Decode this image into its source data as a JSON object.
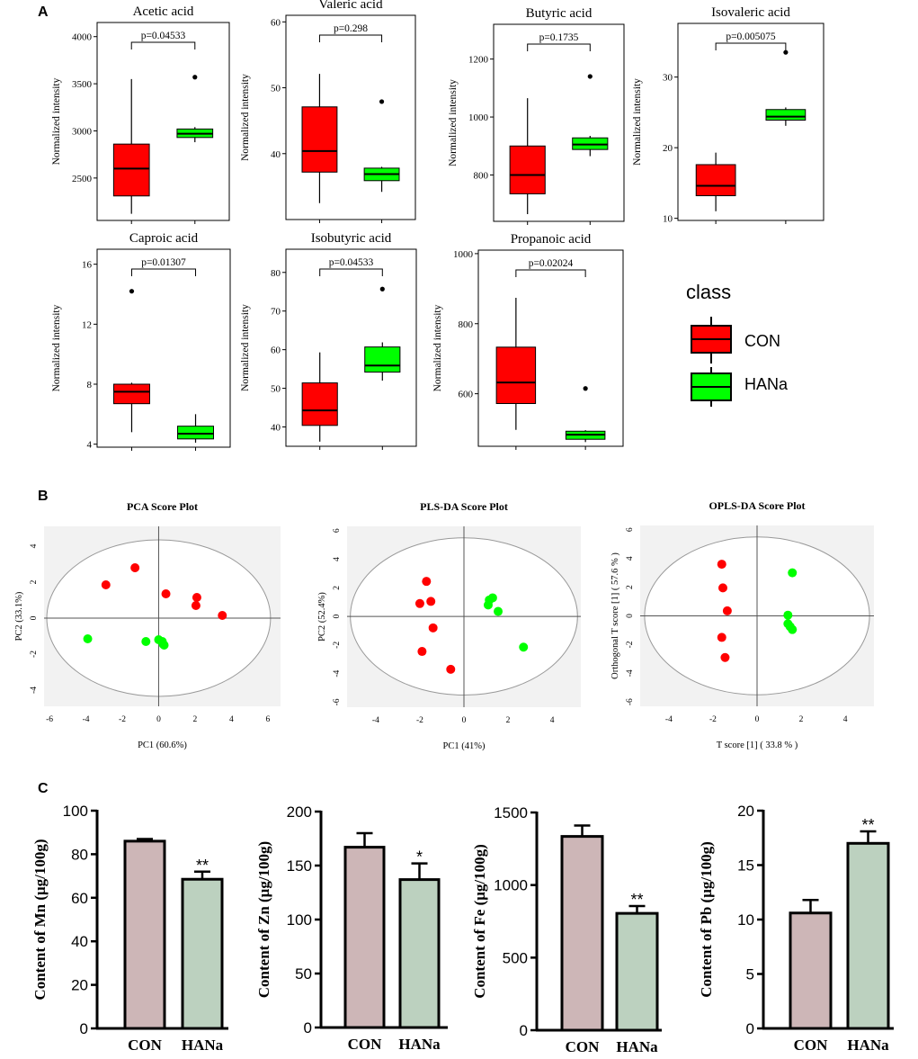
{
  "panel_labels": {
    "a": "A",
    "b": "B",
    "c": "C"
  },
  "colors": {
    "con": "#ff0000",
    "hana": "#00ff00",
    "con_bar": "#cdb6b7",
    "hana_bar": "#bcd1bf",
    "plot_bg": "#f2f2f2"
  },
  "legend": {
    "title": "class",
    "items": [
      "CON",
      "HANa"
    ]
  },
  "chart_data": [
    {
      "id": "acetic",
      "type": "box",
      "title": "Acetic acid",
      "ylabel": "Normalized intensity",
      "pvalue": "p=0.04533",
      "ylim": [
        2050,
        4150
      ],
      "ticks": [
        2500,
        3000,
        3500,
        4000
      ],
      "groups": [
        {
          "name": "CON",
          "whisker_low": 2120,
          "q1": 2310,
          "median": 2600,
          "q3": 2860,
          "whisker_high": 3550,
          "outliers": []
        },
        {
          "name": "HANa",
          "whisker_low": 2880,
          "q1": 2930,
          "median": 2970,
          "q3": 3020,
          "whisker_high": 3040,
          "outliers": [
            3570
          ]
        }
      ]
    },
    {
      "id": "valeric",
      "type": "box",
      "title": "Valeric acid",
      "ylabel": "Normalized intensity",
      "pvalue": "p=0.298",
      "ylim": [
        30,
        61
      ],
      "ticks": [
        40,
        50,
        60
      ],
      "groups": [
        {
          "name": "CON",
          "whisker_low": 32.5,
          "q1": 37.2,
          "median": 40.4,
          "q3": 47.1,
          "whisker_high": 52.1,
          "outliers": []
        },
        {
          "name": "HANa",
          "whisker_low": 34.2,
          "q1": 35.9,
          "median": 36.9,
          "q3": 37.8,
          "whisker_high": 38.0,
          "outliers": [
            47.9
          ]
        }
      ]
    },
    {
      "id": "butyric",
      "type": "box",
      "title": "Butyric acid",
      "ylabel": "Normalized intensity",
      "pvalue": "p=0.1735",
      "ylim": [
        640,
        1320
      ],
      "ticks": [
        800,
        1000,
        1200
      ],
      "groups": [
        {
          "name": "CON",
          "whisker_low": 665,
          "q1": 735,
          "median": 800,
          "q3": 900,
          "whisker_high": 1065,
          "outliers": []
        },
        {
          "name": "HANa",
          "whisker_low": 865,
          "q1": 888,
          "median": 905,
          "q3": 928,
          "whisker_high": 935,
          "outliers": [
            1140
          ]
        }
      ]
    },
    {
      "id": "isovaleric",
      "type": "box",
      "title": "Isovaleric acid",
      "ylabel": "Normalized intensity",
      "pvalue": "p=0.005075",
      "ylim": [
        9.7,
        37.6
      ],
      "ticks": [
        10,
        20,
        30
      ],
      "groups": [
        {
          "name": "CON",
          "whisker_low": 11.0,
          "q1": 13.2,
          "median": 14.6,
          "q3": 17.6,
          "whisker_high": 19.3,
          "outliers": []
        },
        {
          "name": "HANa",
          "whisker_low": 23.1,
          "q1": 23.9,
          "median": 24.4,
          "q3": 25.4,
          "whisker_high": 25.7,
          "outliers": [
            33.5
          ]
        }
      ]
    },
    {
      "id": "caproic",
      "type": "box",
      "title": "Caproic acid",
      "ylabel": "Normalized intensity",
      "pvalue": "p=0.01307",
      "ylim": [
        3.8,
        17.0
      ],
      "ticks": [
        4,
        8,
        12,
        16
      ],
      "groups": [
        {
          "name": "CON",
          "whisker_low": 4.8,
          "q1": 6.7,
          "median": 7.5,
          "q3": 8.0,
          "whisker_high": 8.1,
          "outliers": [
            14.2
          ]
        },
        {
          "name": "HANa",
          "whisker_low": 4.1,
          "q1": 4.35,
          "median": 4.7,
          "q3": 5.2,
          "whisker_high": 6.0,
          "outliers": []
        }
      ]
    },
    {
      "id": "isobutyric",
      "type": "box",
      "title": "Isobutyric acid",
      "ylabel": "Normalized intensity",
      "pvalue": "p=0.04533",
      "ylim": [
        35,
        86
      ],
      "ticks": [
        40,
        50,
        60,
        70,
        80
      ],
      "groups": [
        {
          "name": "CON",
          "whisker_low": 36.2,
          "q1": 40.4,
          "median": 44.3,
          "q3": 51.4,
          "whisker_high": 59.3,
          "outliers": []
        },
        {
          "name": "HANa",
          "whisker_low": 52.0,
          "q1": 54.2,
          "median": 55.9,
          "q3": 60.7,
          "whisker_high": 61.9,
          "outliers": [
            75.7
          ]
        }
      ]
    },
    {
      "id": "propanoic",
      "type": "box",
      "title": "Propanoic acid",
      "ylabel": "Normalized intensity",
      "pvalue": "p=0.02024",
      "ylim": [
        450,
        1010
      ],
      "ticks": [
        600,
        800,
        1000
      ],
      "groups": [
        {
          "name": "CON",
          "whisker_low": 497,
          "q1": 572,
          "median": 632,
          "q3": 733,
          "whisker_high": 874,
          "outliers": []
        },
        {
          "name": "HANa",
          "whisker_low": 462,
          "q1": 470,
          "median": 483,
          "q3": 493,
          "whisker_high": 496,
          "outliers": [
            615
          ]
        }
      ]
    },
    {
      "id": "pca",
      "type": "scatter",
      "title": "PCA Score Plot",
      "xlabel": "PC1 (60.6%)",
      "ylabel": "PC2 (33.1%)",
      "xlim": [
        -6.3,
        6.7
      ],
      "ylim": [
        -4.9,
        5.1
      ],
      "xticks": [
        -6,
        -4,
        -2,
        0,
        2,
        4,
        6
      ],
      "yticks": [
        -4,
        -2,
        0,
        2,
        4
      ],
      "ellipse": {
        "rx": 6.15,
        "ry": 4.35
      },
      "series": [
        {
          "name": "CON",
          "points": [
            [
              -2.9,
              1.85
            ],
            [
              -1.3,
              2.8
            ],
            [
              0.4,
              1.35
            ],
            [
              2.1,
              1.15
            ],
            [
              2.05,
              0.7
            ],
            [
              3.5,
              0.15
            ]
          ]
        },
        {
          "name": "HANa",
          "points": [
            [
              -3.9,
              -1.15
            ],
            [
              -0.7,
              -1.3
            ],
            [
              0.0,
              -1.2
            ],
            [
              0.2,
              -1.3
            ],
            [
              0.3,
              -1.5
            ],
            [
              0.25,
              -1.45
            ]
          ]
        }
      ]
    },
    {
      "id": "plsda",
      "type": "scatter",
      "title": "PLS-DA Score Plot",
      "xlabel": "PC1 (41%)",
      "ylabel": "PC2 (52.4%)",
      "xlim": [
        -5.3,
        5.3
      ],
      "ylim": [
        -6.35,
        6.3
      ],
      "xticks": [
        -4,
        -2,
        0,
        2,
        4
      ],
      "yticks": [
        -6,
        -4,
        -2,
        0,
        2,
        4,
        6
      ],
      "ellipse": {
        "rx": 5.15,
        "ry": 5.5
      },
      "series": [
        {
          "name": "CON",
          "points": [
            [
              -1.7,
              2.45
            ],
            [
              -1.5,
              1.05
            ],
            [
              -2.0,
              0.9
            ],
            [
              -1.4,
              -0.8
            ],
            [
              -1.9,
              -2.45
            ],
            [
              -0.6,
              -3.7
            ]
          ]
        },
        {
          "name": "HANa",
          "points": [
            [
              1.15,
              1.15
            ],
            [
              1.3,
              1.3
            ],
            [
              1.1,
              0.8
            ],
            [
              1.55,
              0.35
            ],
            [
              2.7,
              -2.15
            ]
          ]
        }
      ]
    },
    {
      "id": "oplsda",
      "type": "scatter",
      "title": "OPLS-DA Score Plot",
      "xlabel": "T score [1] ( 33.8 % )",
      "ylabel": "Orthogonal T score [1] ( 57.6 % )",
      "xlim": [
        -5.3,
        5.3
      ],
      "ylim": [
        -6.3,
        6.3
      ],
      "xticks": [
        -4,
        -2,
        0,
        2,
        4
      ],
      "yticks": [
        -6,
        -4,
        -2,
        0,
        2,
        4,
        6
      ],
      "ellipse": {
        "rx": 5.1,
        "ry": 5.5
      },
      "series": [
        {
          "name": "CON",
          "points": [
            [
              -1.6,
              3.6
            ],
            [
              -1.55,
              1.95
            ],
            [
              -1.35,
              0.35
            ],
            [
              -1.6,
              -1.5
            ],
            [
              -1.45,
              -2.9
            ]
          ]
        },
        {
          "name": "HANa",
          "points": [
            [
              1.6,
              3.0
            ],
            [
              1.4,
              0.05
            ],
            [
              1.4,
              -0.55
            ],
            [
              1.5,
              -0.75
            ],
            [
              1.6,
              -0.95
            ]
          ]
        }
      ]
    },
    {
      "id": "mn",
      "type": "bar",
      "ylabel": "Content of Mn (μg/100g)",
      "categories": [
        "CON",
        "HANa"
      ],
      "values": [
        86,
        68.5
      ],
      "errors": [
        1.0,
        3.5
      ],
      "significance": [
        "",
        "**"
      ],
      "ylim": [
        0,
        100
      ],
      "ticks": [
        0,
        20,
        40,
        60,
        80,
        100
      ]
    },
    {
      "id": "zn",
      "type": "bar",
      "ylabel": "Content of Zn (μg/100g)",
      "categories": [
        "CON",
        "HANa"
      ],
      "values": [
        167,
        137
      ],
      "errors": [
        13,
        15
      ],
      "significance": [
        "",
        "*"
      ],
      "ylim": [
        0,
        200
      ],
      "ticks": [
        0,
        50,
        100,
        150,
        200
      ]
    },
    {
      "id": "fe",
      "type": "bar",
      "ylabel": "Content of Fe (μg/100g)",
      "categories": [
        "CON",
        "HANa"
      ],
      "values": [
        1335,
        805
      ],
      "errors": [
        75,
        50
      ],
      "significance": [
        "",
        "**"
      ],
      "ylim": [
        0,
        1500
      ],
      "ticks": [
        0,
        500,
        1000,
        1500
      ]
    },
    {
      "id": "pb",
      "type": "bar",
      "ylabel": "Content of Pb (μg/100g)",
      "categories": [
        "CON",
        "HANa"
      ],
      "values": [
        10.6,
        17.0
      ],
      "errors": [
        1.2,
        1.1
      ],
      "significance": [
        "",
        "**"
      ],
      "ylim": [
        0,
        20
      ],
      "ticks": [
        0,
        5,
        10,
        15,
        20
      ]
    }
  ]
}
